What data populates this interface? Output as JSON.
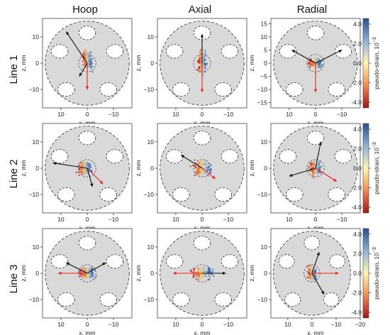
{
  "figure": {
    "columns": [
      "Hoop",
      "Axial",
      "Radial"
    ],
    "rows": [
      "Line 1",
      "Line 2",
      "Line 3"
    ],
    "x_axis_label": "x, mm",
    "y_axis_label": "z, mm",
    "colorbar_label": "pseudo-strain, 10",
    "colorbar_exponent": "−3",
    "colorbar_ticks": [
      "4.0",
      "2.0",
      "0.0",
      "-2.0",
      "-4.0"
    ],
    "x_ticks_standard": [
      "10",
      "0",
      "−10"
    ],
    "x_ticks_last": [
      "10",
      "0",
      "−10",
      "−20"
    ],
    "y_ticks_standard": [
      "10",
      "0",
      "−10"
    ],
    "y_ticks_radial_line1": [
      "15",
      "10",
      "5",
      "0",
      "−5",
      "−10",
      "−15"
    ]
  },
  "colors": {
    "disk_fill": "#d9d9d9",
    "hole_fill": "#ffffff",
    "red_arrow": "#e8261c",
    "black_arrow": "#111111",
    "strain_positive": "#2f5fa3",
    "strain_negative": "#c8281f"
  },
  "chart_data": [
    {
      "type": "scatter",
      "row": "Line 1",
      "column": "Hoop",
      "xlim": [
        17,
        -17
      ],
      "ylim": [
        -17,
        17
      ],
      "cloud": {
        "x": 0,
        "z": 1,
        "spread": [
          2.5,
          5
        ]
      },
      "arrows": [
        {
          "color": "red",
          "from": [
            0,
            0
          ],
          "to": [
            0,
            -10
          ]
        },
        {
          "color": "black",
          "from": [
            0,
            0
          ],
          "to": [
            8,
            12
          ]
        },
        {
          "color": "black",
          "from": [
            0,
            0
          ],
          "to": [
            3,
            -5
          ]
        }
      ]
    },
    {
      "type": "scatter",
      "row": "Line 1",
      "column": "Axial",
      "xlim": [
        17,
        -17
      ],
      "ylim": [
        -17,
        17
      ],
      "cloud": {
        "x": 0,
        "z": 0,
        "spread": [
          2.2,
          6
        ]
      },
      "arrows": [
        {
          "color": "red",
          "from": [
            0,
            0
          ],
          "to": [
            0,
            -11
          ]
        },
        {
          "color": "black",
          "from": [
            0,
            0
          ],
          "to": [
            0,
            11
          ]
        }
      ]
    },
    {
      "type": "scatter",
      "row": "Line 1",
      "column": "Radial",
      "xlim": [
        17,
        -17
      ],
      "ylim": [
        -17,
        17
      ],
      "cloud": {
        "x": 0,
        "z": 0,
        "spread": [
          3.5,
          2.5
        ]
      },
      "arrows": [
        {
          "color": "red",
          "from": [
            0,
            0
          ],
          "to": [
            0,
            -11
          ]
        },
        {
          "color": "black",
          "from": [
            0,
            0
          ],
          "to": [
            9,
            5
          ]
        },
        {
          "color": "black",
          "from": [
            0,
            0
          ],
          "to": [
            -10,
            5
          ]
        }
      ]
    },
    {
      "type": "scatter",
      "row": "Line 2",
      "column": "Hoop",
      "xlim": [
        17,
        -17
      ],
      "ylim": [
        -17,
        17
      ],
      "cloud": {
        "x": 1,
        "z": 0,
        "spread": [
          3.5,
          3.5
        ]
      },
      "arrows": [
        {
          "color": "red",
          "from": [
            0,
            0
          ],
          "to": [
            -6,
            -6
          ]
        },
        {
          "color": "black",
          "from": [
            0,
            0
          ],
          "to": [
            13,
            2
          ]
        },
        {
          "color": "black",
          "from": [
            0,
            0
          ],
          "to": [
            -2,
            -7
          ]
        }
      ]
    },
    {
      "type": "scatter",
      "row": "Line 2",
      "column": "Axial",
      "xlim": [
        17,
        -17
      ],
      "ylim": [
        -17,
        17
      ],
      "cloud": {
        "x": 0,
        "z": 0,
        "spread": [
          5,
          4
        ]
      },
      "arrows": [
        {
          "color": "red",
          "from": [
            0,
            0
          ],
          "to": [
            -5,
            -4
          ]
        },
        {
          "color": "black",
          "from": [
            0,
            0
          ],
          "to": [
            8,
            5
          ]
        }
      ]
    },
    {
      "type": "scatter",
      "row": "Line 2",
      "column": "Radial",
      "xlim": [
        17,
        -17
      ],
      "ylim": [
        -17,
        17
      ],
      "cloud": {
        "x": 0,
        "z": 0,
        "spread": [
          3,
          4
        ]
      },
      "arrows": [
        {
          "color": "red",
          "from": [
            0,
            0
          ],
          "to": [
            -8,
            -5
          ]
        },
        {
          "color": "black",
          "from": [
            0,
            0
          ],
          "to": [
            10,
            -3
          ]
        },
        {
          "color": "black",
          "from": [
            0,
            0
          ],
          "to": [
            -2,
            10
          ]
        }
      ]
    },
    {
      "type": "scatter",
      "row": "Line 3",
      "column": "Hoop",
      "xlim": [
        17,
        -17
      ],
      "ylim": [
        -17,
        17
      ],
      "cloud": {
        "x": 0,
        "z": 0,
        "spread": [
          4,
          3
        ]
      },
      "arrows": [
        {
          "color": "red",
          "from": [
            0,
            0
          ],
          "to": [
            11,
            0
          ]
        },
        {
          "color": "black",
          "from": [
            0,
            0
          ],
          "to": [
            -7,
            4
          ]
        },
        {
          "color": "black",
          "from": [
            0,
            0
          ],
          "to": [
            8,
            4
          ]
        }
      ]
    },
    {
      "type": "scatter",
      "row": "Line 3",
      "column": "Axial",
      "xlim": [
        17,
        -17
      ],
      "ylim": [
        -17,
        17
      ],
      "cloud": {
        "x": 0,
        "z": 0,
        "spread": [
          6,
          3
        ]
      },
      "arrows": [
        {
          "color": "red",
          "from": [
            0,
            0
          ],
          "to": [
            11,
            0
          ]
        },
        {
          "color": "black",
          "from": [
            0,
            0
          ],
          "to": [
            -9,
            0
          ]
        }
      ]
    },
    {
      "type": "scatter",
      "row": "Line 3",
      "column": "Radial",
      "xlim": [
        17,
        -20
      ],
      "ylim": [
        -17,
        17
      ],
      "cloud": {
        "x": 0,
        "z": 0,
        "spread": [
          2.5,
          4
        ]
      },
      "arrows": [
        {
          "color": "red",
          "from": [
            0,
            0
          ],
          "to": [
            -11,
            0
          ]
        },
        {
          "color": "black",
          "from": [
            0,
            0
          ],
          "to": [
            -5,
            -8
          ]
        },
        {
          "color": "black",
          "from": [
            0,
            0
          ],
          "to": [
            -3,
            8
          ]
        }
      ]
    }
  ]
}
